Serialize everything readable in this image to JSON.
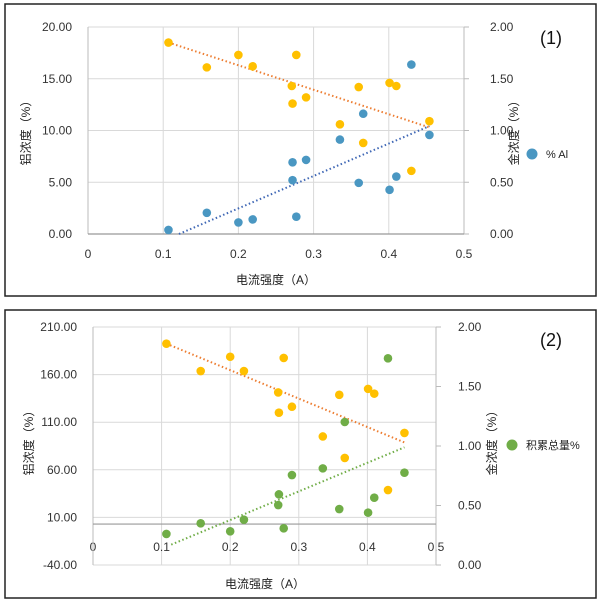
{
  "chart_data": [
    {
      "type": "scatter",
      "panel_label": "(1)",
      "xlabel": "电流强度（A）",
      "ylabel_left": "铝浓度（%）",
      "ylabel_right": "金浓度（%）",
      "xlim": [
        0,
        0.5
      ],
      "ylim_left": [
        0,
        20
      ],
      "ylim_right": [
        0,
        2
      ],
      "x_ticks": [
        "0",
        "0.1",
        "0.2",
        "0.3",
        "0.4",
        "0.5"
      ],
      "y_left_ticks": [
        "0.00",
        "5.00",
        "10.00",
        "15.00",
        "20.00"
      ],
      "y_right_ticks": [
        "0.00",
        "0.50",
        "1.00",
        "1.50",
        "2.00"
      ],
      "grid": true,
      "legend_position": "right",
      "series": [
        {
          "axis": "right",
          "color": "#FFC000",
          "x": [
            0.107,
            0.158,
            0.2,
            0.219,
            0.277,
            0.271,
            0.272,
            0.29,
            0.335,
            0.36,
            0.366,
            0.401,
            0.41,
            0.43,
            0.454
          ],
          "y": [
            1.85,
            1.61,
            1.73,
            1.62,
            1.73,
            1.43,
            1.26,
            1.32,
            1.06,
            1.42,
            0.88,
            1.46,
            1.43,
            0.61,
            1.09
          ],
          "trendline": {
            "x": [
              0.107,
              0.454
            ],
            "y": [
              1.85,
              1.03
            ],
            "color": "#ED7D31"
          }
        },
        {
          "name": "% Al",
          "axis": "left",
          "color": "#4A97C2",
          "x": [
            0.107,
            0.158,
            0.2,
            0.219,
            0.277,
            0.272,
            0.272,
            0.29,
            0.335,
            0.36,
            0.366,
            0.401,
            0.41,
            0.43,
            0.454
          ],
          "y": [
            0.39,
            2.05,
            1.12,
            1.41,
            1.67,
            6.93,
            5.2,
            7.16,
            9.12,
            4.94,
            11.62,
            4.27,
            5.55,
            16.37,
            9.57
          ],
          "trendline": {
            "x": [
              0.121,
              0.454
            ],
            "y": [
              0,
              10.43
            ],
            "color": "#3F67B5"
          }
        }
      ]
    },
    {
      "type": "scatter",
      "panel_label": "(2)",
      "xlabel": "电流强度（A）",
      "ylabel_left": "铝浓度（%）",
      "ylabel_right": "金浓度（%）",
      "xlim": [
        0,
        0.5
      ],
      "ylim_left": [
        -40,
        210
      ],
      "ylim_right": [
        0,
        2
      ],
      "x_ticks": [
        "0",
        "0.1",
        "0.2",
        "0.3",
        "0.4",
        "0.5"
      ],
      "y_left_ticks": [
        "-40.00",
        "10.00",
        "60.00",
        "110.00",
        "160.00",
        "210.00"
      ],
      "y_right_ticks": [
        "0.00",
        "0.50",
        "1.00",
        "1.50",
        "2.00"
      ],
      "x_axis_crossing": 3,
      "grid": true,
      "legend_position": "right",
      "series": [
        {
          "axis": "right",
          "color": "#FFC000",
          "x": [
            0.107,
            0.157,
            0.2,
            0.22,
            0.278,
            0.27,
            0.271,
            0.29,
            0.335,
            0.359,
            0.367,
            0.401,
            0.41,
            0.43,
            0.454
          ],
          "y": [
            1.86,
            1.63,
            1.75,
            1.63,
            1.74,
            1.45,
            1.28,
            1.33,
            1.08,
            1.43,
            0.9,
            1.48,
            1.44,
            0.63,
            1.11
          ],
          "trendline": {
            "x": [
              0.107,
              0.454
            ],
            "y": [
              1.86,
              1.03
            ],
            "color": "#ED7D31"
          }
        },
        {
          "name": "积累总量%",
          "axis": "left",
          "color": "#70AD47",
          "x": [
            0.107,
            0.157,
            0.2,
            0.22,
            0.278,
            0.271,
            0.27,
            0.29,
            0.335,
            0.359,
            0.367,
            0.401,
            0.41,
            0.43,
            0.454
          ],
          "y": [
            -7.4,
            3.8,
            -4.6,
            7.6,
            -1.5,
            34.2,
            23.0,
            54.5,
            61.5,
            18.8,
            110.2,
            15.0,
            30.7,
            177.1,
            57.0
          ],
          "trendline": {
            "x": [
              0.114,
              0.454
            ],
            "y": [
              -18.6,
              83.6
            ],
            "color": "#70AD47"
          }
        }
      ]
    }
  ]
}
